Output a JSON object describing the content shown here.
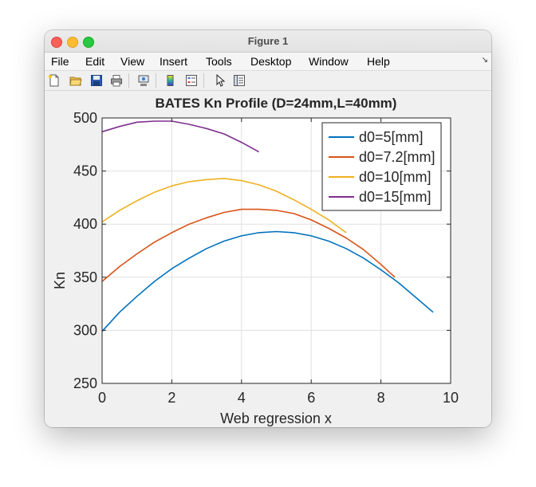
{
  "window": {
    "title": "Figure 1",
    "menu": [
      "File",
      "Edit",
      "View",
      "Insert",
      "Tools",
      "Desktop",
      "Window",
      "Help"
    ],
    "menu_overflow_icon": "corner-arrow-icon",
    "toolbar_icons": [
      "new-figure-icon",
      "open-file-icon",
      "save-icon",
      "print-icon",
      "link-plot-icon",
      "colorbar-icon",
      "legend-icon",
      "edit-plot-pointer-icon",
      "property-inspector-icon"
    ]
  },
  "chart_data": {
    "type": "line",
    "title": "BATES Kn Profile (D=24mm,L=40mm)",
    "xlabel": "Web regression x",
    "ylabel": "Kn",
    "xlim": [
      0,
      10
    ],
    "ylim": [
      250,
      500
    ],
    "xticks": [
      0,
      2,
      4,
      6,
      8,
      10
    ],
    "yticks": [
      250,
      300,
      350,
      400,
      450,
      500
    ],
    "grid": true,
    "legend": "top-right",
    "series": [
      {
        "name": "d0=5[mm]",
        "color": "#0072bd",
        "x": [
          0,
          0.5,
          1,
          1.5,
          2,
          2.5,
          3,
          3.5,
          4,
          4.5,
          5,
          5.5,
          6,
          6.5,
          7,
          7.5,
          8,
          8.5,
          9,
          9.5
        ],
        "y": [
          299,
          317,
          332,
          346,
          358,
          368,
          377,
          384,
          389,
          392,
          393,
          392,
          389,
          384,
          377,
          368,
          357,
          345,
          331,
          317
        ]
      },
      {
        "name": "d0=7.2[mm]",
        "color": "#d95319",
        "x": [
          0,
          0.5,
          1,
          1.5,
          2,
          2.5,
          3,
          3.5,
          4,
          4.5,
          5,
          5.5,
          6,
          6.5,
          7,
          7.5,
          8,
          8.4
        ],
        "y": [
          346,
          360,
          372,
          383,
          392,
          400,
          406,
          411,
          414,
          414,
          413,
          410,
          404,
          396,
          387,
          376,
          362,
          350
        ]
      },
      {
        "name": "d0=10[mm]",
        "color": "#edb120",
        "x": [
          0,
          0.5,
          1,
          1.5,
          2,
          2.5,
          3,
          3.5,
          4,
          4.5,
          5,
          5.5,
          6,
          6.5,
          7
        ],
        "y": [
          402,
          413,
          422,
          430,
          436,
          440,
          442,
          443,
          441,
          437,
          431,
          423,
          414,
          404,
          392
        ]
      },
      {
        "name": "d0=15[mm]",
        "color": "#7e2f8e",
        "x": [
          0,
          0.5,
          1,
          1.5,
          2,
          2.5,
          3,
          3.5,
          4,
          4.5
        ],
        "y": [
          487,
          492,
          496,
          497,
          497,
          494,
          490,
          485,
          477,
          468
        ]
      }
    ]
  }
}
